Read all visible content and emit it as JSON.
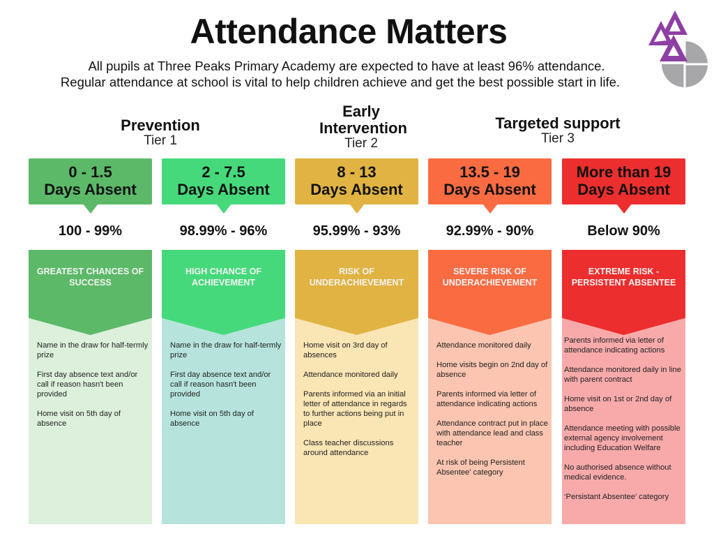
{
  "title": "Attendance Matters",
  "intro": [
    "All pupils at Three Peaks Primary Academy are expected to have at least 96% attendance.",
    "Regular attendance at school is vital to help children achieve and get the best possible start in life."
  ],
  "logo_text": "Three Peaks Primary Academy",
  "tiers": [
    {
      "name": "Prevention",
      "tier": "Tier 1"
    },
    {
      "name": "Early Intervention",
      "tier": "Tier 2"
    },
    {
      "name": "Targeted support",
      "tier": "Tier 3"
    }
  ],
  "columns": [
    {
      "range": "0 - 1.5",
      "unit": "Days Absent",
      "percent": "100 - 99%",
      "risk": "GREATEST CHANCES OF SUCCESS",
      "color": "#5cb968",
      "light": "#dcf0dc",
      "items": [
        "Name in the draw for half-termly prize",
        "First day absence text and/or call if reason hasn't been provided",
        "Home visit on 5th day of absence"
      ]
    },
    {
      "range": "2 - 7.5",
      "unit": "Days Absent",
      "percent": "98.99% - 96%",
      "risk": "HIGH CHANCE OF ACHIEVEMENT",
      "color": "#46d97b",
      "light": "#b6e4dc",
      "items": [
        "Name in the draw for half-termly prize",
        "First day absence text and/or call if reason hasn't been provided",
        "Home visit on 5th day of absence"
      ]
    },
    {
      "range": "8 - 13",
      "unit": "Days Absent",
      "percent": "95.99% - 93%",
      "risk": "RISK OF UNDERACHIEVEMENT",
      "color": "#e0b342",
      "light": "#fae5b5",
      "items": [
        "Home visit on 3rd day of absences",
        "Attendance monitored daily",
        "Parents informed via an initial letter of attendance in regards to further actions being put in place",
        "Class teacher discussions around attendance"
      ]
    },
    {
      "range": "13.5 - 19",
      "unit": "Days Absent",
      "percent": "92.99% - 90%",
      "risk": "SEVERE RISK OF UNDERACHIEVEMENT",
      "color": "#fb6b42",
      "light": "#fbc5b1",
      "items": [
        "Attendance monitored daily",
        "Home visits begin on 2nd day of absence",
        "Parents informed via letter of attendance indicating actions",
        "Attendance contract put in place with attendance lead and class teacher",
        "At risk of being Persistent Absentee' category"
      ]
    },
    {
      "range": "More than 19",
      "unit": "Days Absent",
      "percent": "Below 90%",
      "risk": "EXTREME RISK - PERSISTENT ABSENTEE",
      "color": "#ec2e2e",
      "light": "#f8aaab",
      "items": [
        "Parents informed via letter of attendance indicating actions",
        "Attendance monitored daily in line with parent contract",
        "Home visit on 1st or 2nd day of absence",
        "Attendance meeting with possible external agency involvement including Education Welfare",
        "No authorised absence without medical evidence.",
        "‘Persistant Absentee’ category"
      ]
    }
  ]
}
